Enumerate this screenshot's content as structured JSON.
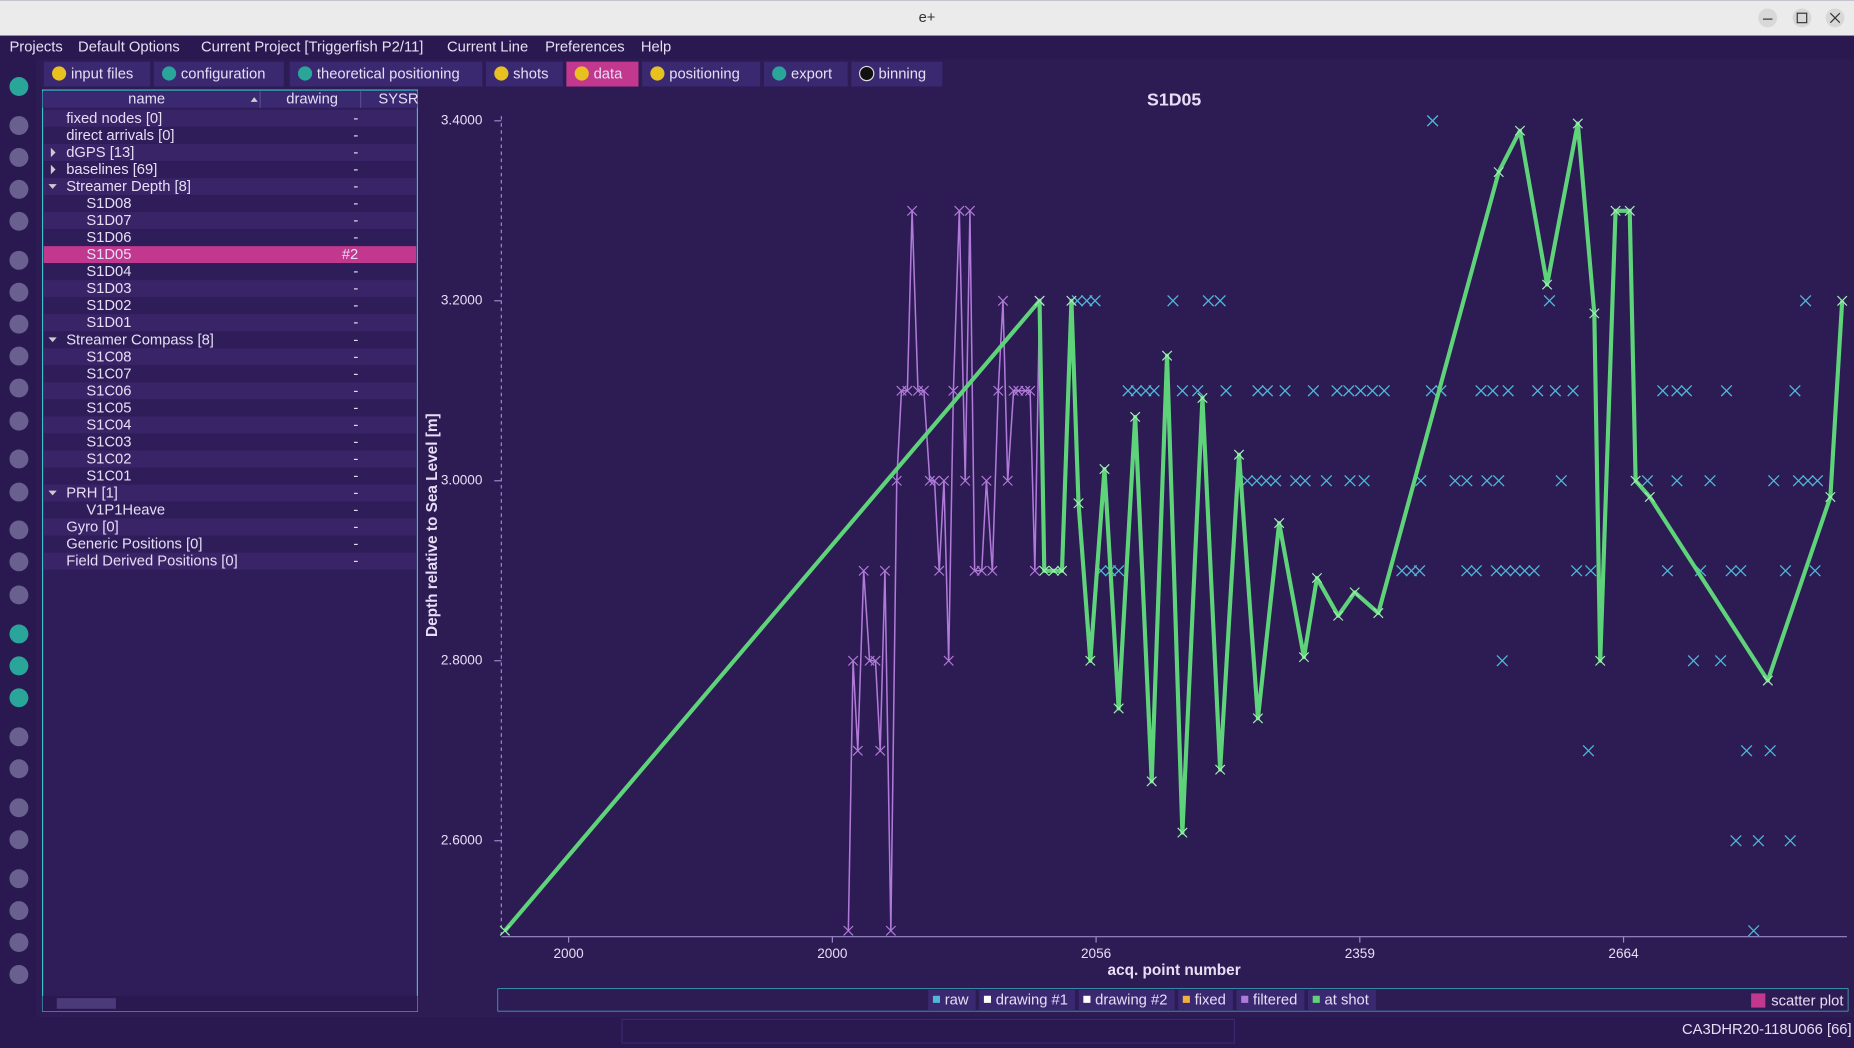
{
  "window": {
    "title": "e+"
  },
  "menu": [
    "Projects",
    "Default Options",
    "Current Project [Triggerfish P2/11]",
    "Current Line",
    "Preferences",
    "Help"
  ],
  "tabs": [
    {
      "label": "input files",
      "status": "warn"
    },
    {
      "label": "configuration",
      "status": "ok"
    },
    {
      "label": "theoretical positioning",
      "status": "ok"
    },
    {
      "label": "shots",
      "status": "warn"
    },
    {
      "label": "data",
      "status": "warn",
      "selected": true
    },
    {
      "label": "positioning",
      "status": "warn"
    },
    {
      "label": "export",
      "status": "ok"
    },
    {
      "label": "binning",
      "status": "off"
    }
  ],
  "tree": {
    "columns": [
      "name",
      "drawing",
      "SYSR"
    ],
    "rows": [
      {
        "name": "fixed nodes [0]",
        "drawing": "-"
      },
      {
        "name": "direct arrivals [0]",
        "drawing": "-"
      },
      {
        "name": "dGPS [13]",
        "drawing": "-",
        "expanded": false
      },
      {
        "name": "baselines [69]",
        "drawing": "-",
        "expanded": false
      },
      {
        "name": "Streamer Depth [8]",
        "drawing": "-",
        "expanded": true,
        "children": [
          {
            "name": "S1D08",
            "drawing": "-"
          },
          {
            "name": "S1D07",
            "drawing": "-"
          },
          {
            "name": "S1D06",
            "drawing": "-"
          },
          {
            "name": "S1D05",
            "drawing": "#2",
            "selected": true
          },
          {
            "name": "S1D04",
            "drawing": "-"
          },
          {
            "name": "S1D03",
            "drawing": "-"
          },
          {
            "name": "S1D02",
            "drawing": "-"
          },
          {
            "name": "S1D01",
            "drawing": "-"
          }
        ]
      },
      {
        "name": "Streamer Compass [8]",
        "drawing": "-",
        "expanded": true,
        "children": [
          {
            "name": "S1C08",
            "drawing": "-"
          },
          {
            "name": "S1C07",
            "drawing": "-"
          },
          {
            "name": "S1C06",
            "drawing": "-"
          },
          {
            "name": "S1C05",
            "drawing": "-"
          },
          {
            "name": "S1C04",
            "drawing": "-"
          },
          {
            "name": "S1C03",
            "drawing": "-"
          },
          {
            "name": "S1C02",
            "drawing": "-"
          },
          {
            "name": "S1C01",
            "drawing": "-"
          }
        ]
      },
      {
        "name": "PRH [1]",
        "drawing": "-",
        "expanded": true,
        "children": [
          {
            "name": "V1P1Heave",
            "drawing": "-"
          }
        ]
      },
      {
        "name": "Gyro [0]",
        "drawing": "-"
      },
      {
        "name": "Generic Positions [0]",
        "drawing": "-"
      },
      {
        "name": "Field Derived Positions [0]",
        "drawing": "-"
      }
    ]
  },
  "chart_data": {
    "type": "line",
    "title": "S1D05",
    "x_label": "acq. point number",
    "y_label": "Depth relative to Sea Level [m]",
    "xlim": [
      1800,
      2940
    ],
    "xtick_labels": [
      "2000",
      "2000",
      "2056",
      "2359",
      "2664"
    ],
    "ylim": [
      2.49,
      3.41
    ],
    "yticks": [
      {
        "value": 2.6,
        "label": "2.6000"
      },
      {
        "value": 2.8,
        "label": "2.8000"
      },
      {
        "value": 3.0,
        "label": "3.0000"
      },
      {
        "value": 3.2,
        "label": "3.2000"
      },
      {
        "value": 3.4,
        "label": "3.4000"
      }
    ],
    "series": [
      {
        "name": "raw",
        "color": "#4fb8d8",
        "style": "scatter",
        "x": [
          2288,
          2296,
          2303,
          2369,
          2399,
          2409,
          2688,
          2905,
          2331,
          2338,
          2346,
          2353,
          2377,
          2390,
          2414,
          2441,
          2449,
          2464,
          2488,
          2508,
          2518,
          2528,
          2538,
          2548,
          2588,
          2596,
          2630,
          2640,
          2653,
          2678,
          2693,
          2708,
          2784,
          2796,
          2804,
          2838,
          2896,
          2432,
          2440,
          2448,
          2456,
          2473,
          2481,
          2499,
          2519,
          2531,
          2579,
          2608,
          2618,
          2635,
          2645,
          2698,
          2771,
          2796,
          2824,
          2878,
          2899,
          2907,
          2915,
          2308,
          2316,
          2323,
          2563,
          2571,
          2578,
          2618,
          2626,
          2643,
          2651,
          2659,
          2667,
          2675,
          2711,
          2723,
          2788,
          2816,
          2842,
          2850,
          2888,
          2913,
          2648,
          2810,
          2833,
          2721,
          2855,
          2875,
          2846,
          2865,
          2892,
          2861,
          2589
        ],
        "values": [
          3.2,
          3.2,
          3.2,
          3.2,
          3.2,
          3.2,
          3.2,
          3.2,
          3.1,
          3.1,
          3.1,
          3.1,
          3.1,
          3.1,
          3.1,
          3.1,
          3.1,
          3.1,
          3.1,
          3.1,
          3.1,
          3.1,
          3.1,
          3.1,
          3.1,
          3.1,
          3.1,
          3.1,
          3.1,
          3.1,
          3.1,
          3.1,
          3.1,
          3.1,
          3.1,
          3.1,
          3.1,
          3.0,
          3.0,
          3.0,
          3.0,
          3.0,
          3.0,
          3.0,
          3.0,
          3.0,
          3.0,
          3.0,
          3.0,
          3.0,
          3.0,
          3.0,
          3.0,
          3.0,
          3.0,
          3.0,
          3.0,
          3.0,
          3.0,
          2.9,
          2.9,
          2.9,
          2.9,
          2.9,
          2.9,
          2.9,
          2.9,
          2.9,
          2.9,
          2.9,
          2.9,
          2.9,
          2.9,
          2.9,
          2.9,
          2.9,
          2.9,
          2.9,
          2.9,
          2.9,
          2.8,
          2.8,
          2.8,
          2.7,
          2.7,
          2.7,
          2.6,
          2.6,
          2.6,
          2.5,
          3.4
        ]
      },
      {
        "name": "filtered",
        "color": "#b07ad8",
        "style": "line",
        "x": [
          2094,
          2098,
          2102,
          2107,
          2112,
          2117,
          2121,
          2125,
          2130,
          2135,
          2139,
          2144,
          2148,
          2153,
          2158,
          2163,
          2167,
          2171,
          2175,
          2179,
          2183,
          2188,
          2193,
          2197,
          2201,
          2207,
          2211,
          2216,
          2221,
          2225,
          2229,
          2234,
          2238,
          2244,
          2248,
          2252,
          2256
        ],
        "values": [
          2.5,
          2.8,
          2.7,
          2.9,
          2.8,
          2.8,
          2.7,
          2.9,
          2.5,
          3.0,
          3.1,
          3.1,
          3.3,
          3.1,
          3.1,
          3.0,
          3.0,
          2.9,
          3.0,
          2.8,
          3.1,
          3.3,
          3.0,
          3.3,
          2.9,
          2.9,
          3.0,
          2.9,
          3.1,
          3.2,
          3.0,
          3.1,
          3.1,
          3.1,
          3.1,
          2.9,
          3.2
        ]
      },
      {
        "name": "at shot",
        "color": "#5fd37a",
        "style": "line",
        "x": [
          1803,
          2256,
          2260,
          2268,
          2275,
          2283,
          2289,
          2299,
          2311,
          2323,
          2337,
          2351,
          2364,
          2377,
          2394,
          2409,
          2425,
          2441,
          2459,
          2480,
          2491,
          2509,
          2523,
          2543,
          2645,
          2663,
          2686,
          2712,
          2726,
          2731,
          2744,
          2756,
          2761,
          2773,
          2873,
          2926,
          2936
        ],
        "values": [
          2.5,
          3.2,
          2.9,
          2.9,
          2.9,
          3.2,
          2.975,
          2.8,
          3.013,
          2.747,
          3.071,
          2.666,
          3.139,
          2.609,
          3.092,
          2.679,
          3.029,
          2.736,
          2.953,
          2.804,
          2.892,
          2.85,
          2.876,
          2.853,
          3.343,
          3.389,
          3.218,
          3.397,
          3.186,
          2.8,
          3.3,
          3.3,
          3.0,
          2.982,
          2.778,
          2.982,
          3.2
        ]
      }
    ],
    "legend": [
      {
        "label": "raw",
        "color": "#4fb8d8"
      },
      {
        "label": "drawing #1",
        "color": "#ffffff"
      },
      {
        "label": "drawing #2",
        "color": "#ffffff"
      },
      {
        "label": "fixed",
        "color": "#f0b040"
      },
      {
        "label": "filtered",
        "color": "#b07ad8"
      },
      {
        "label": "at shot",
        "color": "#5fd37a"
      }
    ],
    "scatter_toggle": {
      "label": "scatter plot",
      "color": "#c2388e"
    }
  },
  "status": "CA3DHR20-118U066 [66]"
}
